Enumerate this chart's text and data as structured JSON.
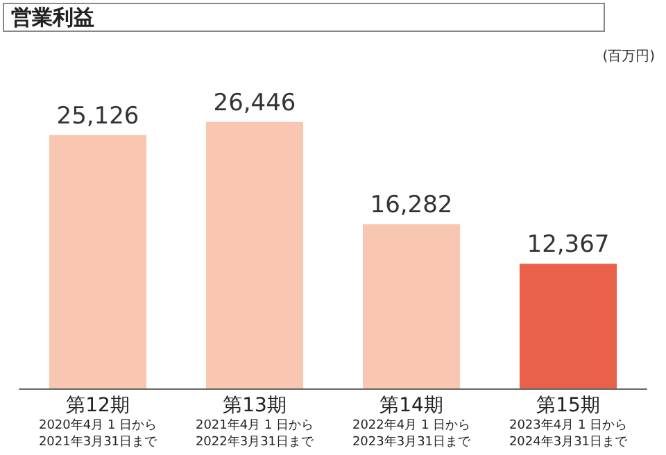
{
  "chart_data": {
    "type": "bar",
    "title": "営業利益",
    "ylabel": "(百万円)",
    "categories": [
      "第12期\n2020年4月 1 日から\n2021年3月31日まで",
      "第13期\n2021年4月 1 日から\n2022年3月31日まで",
      "第14期\n2022年4月 1 日から\n2023年3月31日まで",
      "第15期\n2023年4月 1 日から\n2024年3月31日まで"
    ],
    "values": [
      25126,
      26446,
      16282,
      12367
    ],
    "colors": [
      "#f8c6b1",
      "#f8c6b1",
      "#f8c6b1",
      "#e9614a"
    ],
    "value_labels": [
      "25,126",
      "26,446",
      "16,282",
      "12,367"
    ]
  }
}
